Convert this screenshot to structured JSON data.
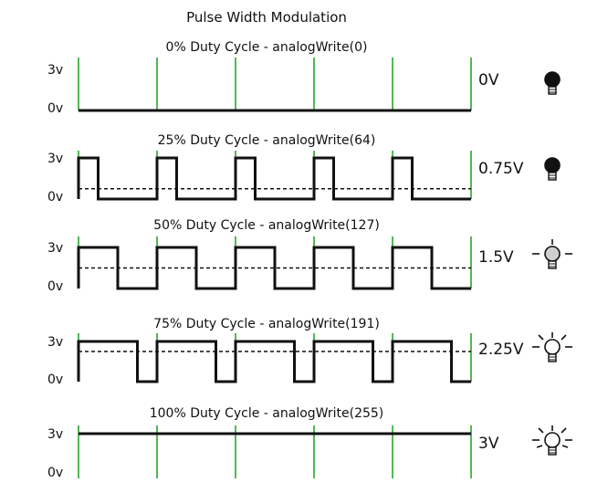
{
  "title": "Pulse Width Modulation",
  "y_tick_labels": {
    "high": "3v",
    "low": "0v"
  },
  "colors": {
    "grid": "#2aa52a",
    "signal": "#111111",
    "average": "#111111",
    "text": "#111111"
  },
  "panels": [
    {
      "label": "0% Duty Cycle - analogWrite(0)",
      "duty": 0.0,
      "voltage": "0V",
      "bulb": "bulb-off-icon"
    },
    {
      "label": "25% Duty Cycle - analogWrite(64)",
      "duty": 0.25,
      "voltage": "0.75V",
      "bulb": "bulb-off-icon"
    },
    {
      "label": "50% Duty Cycle - analogWrite(127)",
      "duty": 0.5,
      "voltage": "1.5V",
      "bulb": "bulb-dim-icon"
    },
    {
      "label": "75% Duty Cycle - analogWrite(191)",
      "duty": 0.75,
      "voltage": "2.25V",
      "bulb": "bulb-bright-icon"
    },
    {
      "label": "100% Duty Cycle - analogWrite(255)",
      "duty": 1.0,
      "voltage": "3V",
      "bulb": "bulb-full-icon"
    }
  ]
}
